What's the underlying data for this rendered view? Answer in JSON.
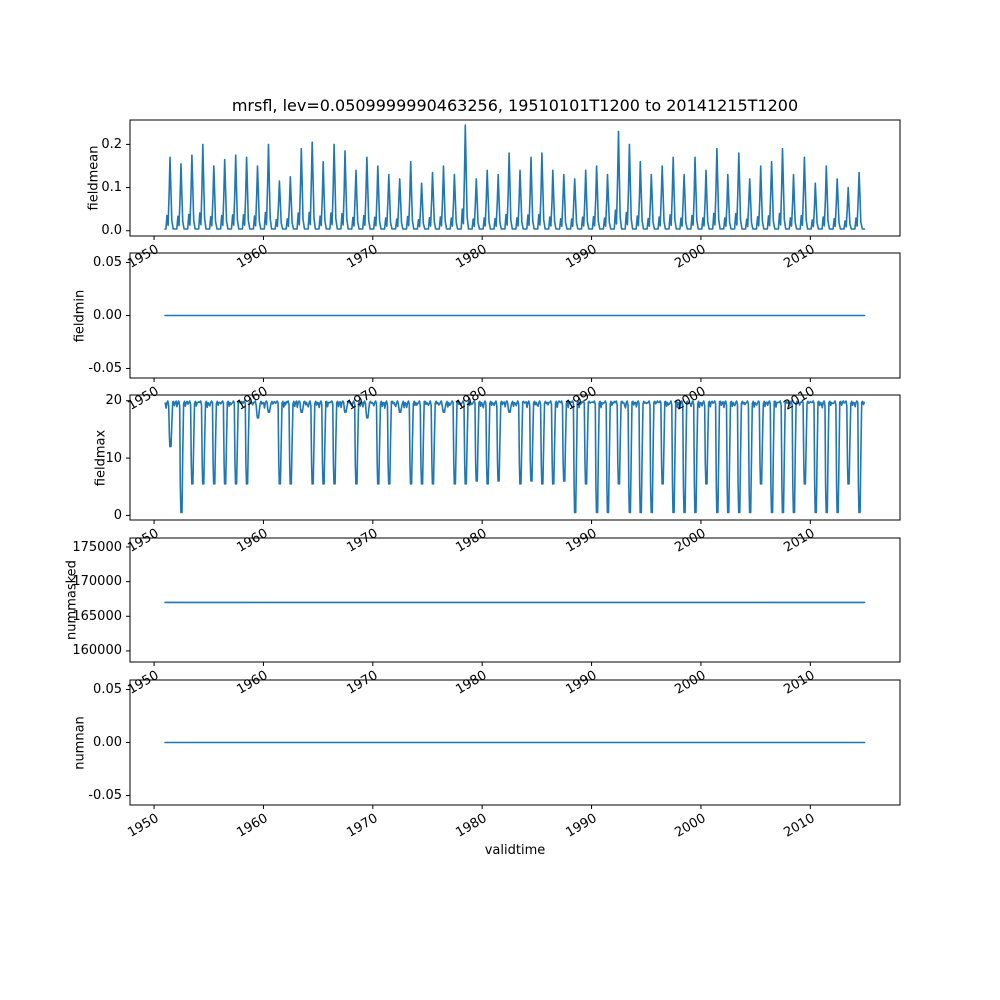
{
  "figure": {
    "title": "mrsfl, lev=0.0509999990463256, 19510101T1200 to 20141215T1200",
    "xlabel": "validtime",
    "line_color": "#1f77b4",
    "background": "#ffffff"
  },
  "x_axis": {
    "xlim": [
      1947.8,
      2018.2
    ],
    "xticks": [
      1950,
      1960,
      1970,
      1980,
      1990,
      2000,
      2010
    ],
    "xtick_labels": [
      "1950",
      "1960",
      "1970",
      "1980",
      "1990",
      "2000",
      "2010"
    ],
    "data_start": 1951.0,
    "data_end": 2014.96
  },
  "chart_data": [
    {
      "type": "line",
      "ylabel": "fieldmean",
      "yticks": [
        0.0,
        0.1,
        0.2
      ],
      "ytick_labels": [
        "0.0",
        "0.1",
        "0.2"
      ],
      "ylim": [
        -0.0122,
        0.2565
      ],
      "series_kind": "annual_spikes",
      "baseline": 0.004,
      "peaks_by_year": [
        0.17,
        0.155,
        0.175,
        0.2,
        0.15,
        0.165,
        0.175,
        0.17,
        0.15,
        0.2,
        0.115,
        0.125,
        0.19,
        0.205,
        0.16,
        0.2,
        0.185,
        0.14,
        0.17,
        0.15,
        0.13,
        0.12,
        0.16,
        0.11,
        0.135,
        0.15,
        0.13,
        0.245,
        0.12,
        0.14,
        0.13,
        0.18,
        0.14,
        0.17,
        0.18,
        0.14,
        0.13,
        0.12,
        0.14,
        0.15,
        0.13,
        0.23,
        0.2,
        0.16,
        0.13,
        0.15,
        0.17,
        0.13,
        0.17,
        0.14,
        0.19,
        0.13,
        0.18,
        0.12,
        0.15,
        0.16,
        0.19,
        0.13,
        0.17,
        0.11,
        0.15,
        0.12,
        0.1,
        0.135
      ]
    },
    {
      "type": "line",
      "ylabel": "fieldmin",
      "yticks": [
        -0.05,
        0.0,
        0.05
      ],
      "ytick_labels": [
        "-0.05",
        "0.00",
        "0.05"
      ],
      "ylim": [
        -0.059,
        0.059
      ],
      "series_kind": "constant",
      "value": 0.0
    },
    {
      "type": "line",
      "ylabel": "fieldmax",
      "yticks": [
        0,
        10,
        20
      ],
      "ytick_labels": [
        "0",
        "10",
        "20"
      ],
      "ylim": [
        -0.8,
        21.0
      ],
      "series_kind": "plateau_dips",
      "plateau": 19.6,
      "dips_by_year": [
        12,
        0.5,
        5.5,
        5.5,
        5.5,
        5.5,
        5.5,
        5.5,
        17,
        18,
        5.5,
        5.5,
        18,
        5.5,
        5.5,
        5.5,
        18,
        5.5,
        17,
        5.5,
        5.5,
        18,
        5.5,
        5.5,
        5.5,
        18,
        5.5,
        5.5,
        6,
        5.5,
        6,
        18,
        5.5,
        6,
        5.5,
        5.5,
        6,
        0.5,
        5.5,
        0.5,
        0.5,
        5.5,
        0.5,
        0.5,
        0.5,
        5.5,
        0.5,
        0.5,
        0.5,
        5.5,
        0.5,
        0.5,
        0.5,
        0.5,
        5.5,
        0.5,
        0.5,
        0.5,
        5.5,
        0.5,
        0.5,
        0.5,
        5.5,
        0.5
      ]
    },
    {
      "type": "line",
      "ylabel": "nummasked",
      "yticks": [
        160000,
        165000,
        170000,
        175000
      ],
      "ytick_labels": [
        "160000",
        "165000",
        "170000",
        "175000"
      ],
      "ylim": [
        158400,
        176300
      ],
      "series_kind": "constant",
      "value": 167000
    },
    {
      "type": "line",
      "ylabel": "numnan",
      "yticks": [
        -0.05,
        0.0,
        0.05
      ],
      "ytick_labels": [
        "-0.05",
        "0.00",
        "0.05"
      ],
      "ylim": [
        -0.059,
        0.059
      ],
      "series_kind": "constant",
      "value": 0.0
    }
  ]
}
